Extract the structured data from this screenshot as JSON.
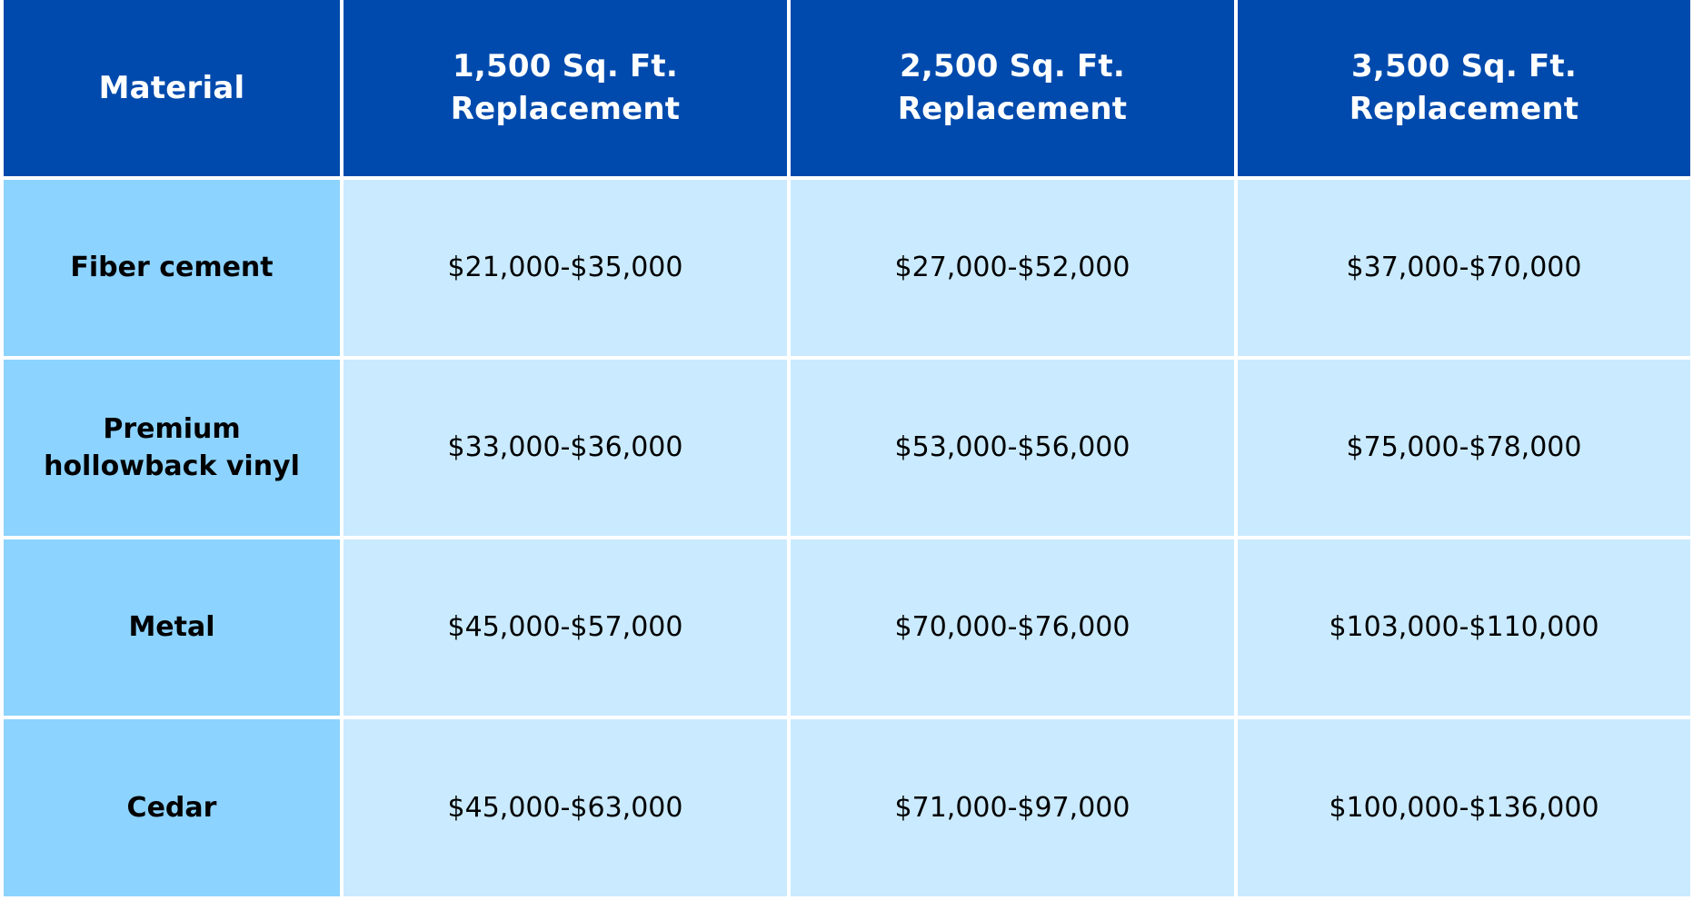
{
  "table": {
    "headers": [
      "Material",
      "1,500 Sq. Ft. Replacement",
      "2,500 Sq. Ft. Replacement",
      "3,500 Sq. Ft. Replacement"
    ],
    "rows": [
      {
        "material": "Fiber cement",
        "values": [
          "$21,000-$35,000",
          "$27,000-$52,000",
          "$37,000-$70,000"
        ]
      },
      {
        "material": "Premium hollowback vinyl",
        "values": [
          "$33,000-$36,000",
          "$53,000-$56,000",
          "$75,000-$78,000"
        ]
      },
      {
        "material": "Metal",
        "values": [
          "$45,000-$57,000",
          "$70,000-$76,000",
          "$103,000-$110,000"
        ]
      },
      {
        "material": "Cedar",
        "values": [
          "$45,000-$63,000",
          "$71,000-$97,000",
          "$100,000-$136,000"
        ]
      }
    ]
  },
  "colors": {
    "header_bg": "#004aad",
    "material_bg": "#8cd3ff",
    "value_bg": "#caeaff",
    "grid_line": "#ffffff"
  }
}
